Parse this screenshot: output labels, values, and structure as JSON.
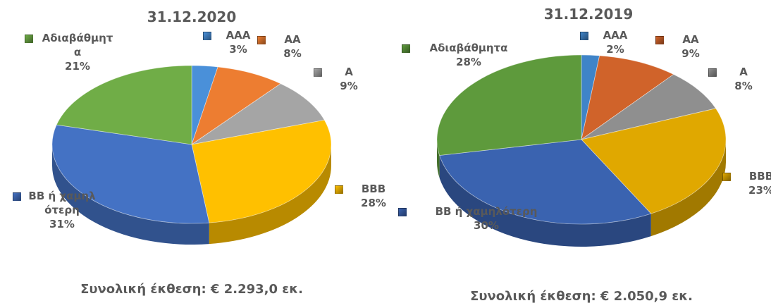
{
  "chart_data": [
    {
      "type": "pie",
      "title": "31.12.2020",
      "categories": [
        "AAA",
        "AA",
        "A",
        "BBB",
        "BB ή χαμηλότερη",
        "Αδιαβάθμητα"
      ],
      "values": [
        3,
        8,
        9,
        28,
        31,
        21
      ],
      "value_labels": [
        "3%",
        "8%",
        "9%",
        "28%",
        "31%",
        "21%"
      ],
      "colors": [
        "#4a90d9",
        "#ed7d31",
        "#a5a5a5",
        "#ffc000",
        "#4472c4",
        "#70ad47"
      ],
      "footnote": "Συνολική έκθεση: € 2.293,0 εκ."
    },
    {
      "type": "pie",
      "title": "31.12.2019",
      "categories": [
        "AAA",
        "AA",
        "A",
        "BBB",
        "BB ή χαμηλότερη",
        "Αδιαβάθμητα"
      ],
      "values": [
        2,
        9,
        8,
        23,
        30,
        28
      ],
      "value_labels": [
        "2%",
        "9%",
        "8%",
        "23%",
        "30%",
        "28%"
      ],
      "colors": [
        "#3f84c8",
        "#d0632a",
        "#8f8f8f",
        "#e0a800",
        "#3a63b0",
        "#5e9a3c"
      ],
      "footnote": "Συνολική έκθεση: € 2.050,9 εκ."
    }
  ]
}
